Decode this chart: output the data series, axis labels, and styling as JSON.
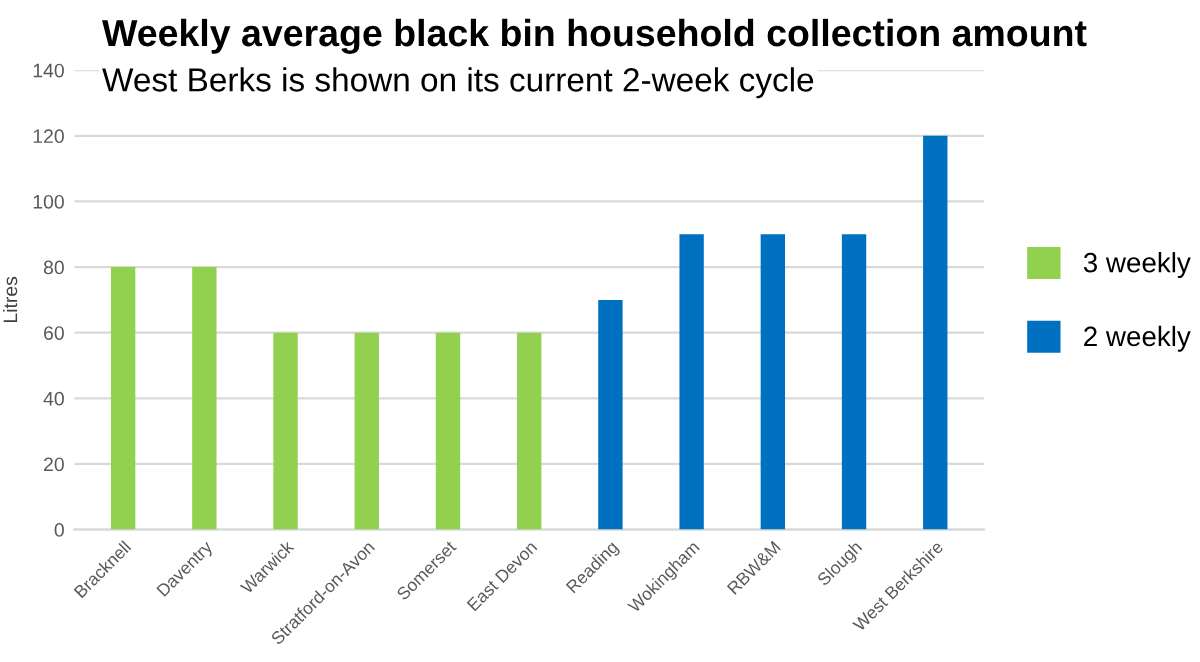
{
  "chart_data": {
    "type": "bar",
    "title": "Weekly average black bin household collection amount",
    "subtitle": "West Berks is shown on its current 2-week cycle",
    "ylabel": "Litres",
    "categories": [
      "Bracknell",
      "Daventry",
      "Warwick",
      "Stratford-on-Avon",
      "Somerset",
      "East Devon",
      "Reading",
      "Wokingham",
      "RBW&M",
      "Slough",
      "West Berkshire"
    ],
    "series": [
      {
        "name": "3 weekly",
        "color": "#92d050",
        "values": [
          80,
          80,
          60,
          60,
          60,
          60,
          null,
          null,
          null,
          null,
          null
        ]
      },
      {
        "name": "2 weekly",
        "color": "#0070c0",
        "values": [
          null,
          null,
          null,
          null,
          null,
          null,
          70,
          90,
          90,
          90,
          120
        ]
      }
    ],
    "ylim": [
      0,
      140
    ],
    "yticks": [
      0,
      20,
      40,
      60,
      80,
      100,
      120,
      140
    ],
    "grid": "y",
    "legend": "right"
  }
}
